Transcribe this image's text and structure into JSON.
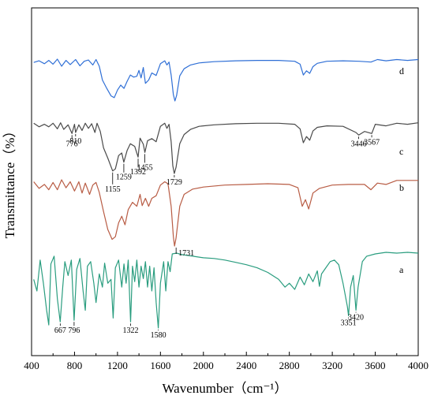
{
  "chart_data": {
    "type": "line",
    "xlabel": "Wavenumber（cm⁻¹）",
    "ylabel": "Transmittance（%）",
    "xlim": [
      400,
      4000
    ],
    "x_ticks": [
      "400",
      "800",
      "1200",
      "1600",
      "2000",
      "2400",
      "2800",
      "3200",
      "3600",
      "4000"
    ],
    "grid": false,
    "legend": "none",
    "series": [
      {
        "name": "d",
        "color": "#2f6fd6",
        "points": [
          [
            420,
            0.92
          ],
          [
            470,
            0.96
          ],
          [
            520,
            0.89
          ],
          [
            560,
            0.97
          ],
          [
            600,
            0.88
          ],
          [
            640,
            1.0
          ],
          [
            680,
            0.83
          ],
          [
            720,
            0.97
          ],
          [
            760,
            0.87
          ],
          [
            810,
            0.99
          ],
          [
            850,
            0.84
          ],
          [
            890,
            0.95
          ],
          [
            930,
            0.98
          ],
          [
            970,
            0.86
          ],
          [
            1000,
            0.99
          ],
          [
            1030,
            0.83
          ],
          [
            1060,
            0.5
          ],
          [
            1100,
            0.3
          ],
          [
            1140,
            0.12
          ],
          [
            1170,
            0.08
          ],
          [
            1200,
            0.26
          ],
          [
            1230,
            0.38
          ],
          [
            1260,
            0.3
          ],
          [
            1290,
            0.47
          ],
          [
            1320,
            0.62
          ],
          [
            1350,
            0.57
          ],
          [
            1380,
            0.59
          ],
          [
            1400,
            0.73
          ],
          [
            1420,
            0.55
          ],
          [
            1440,
            0.8
          ],
          [
            1460,
            0.42
          ],
          [
            1490,
            0.5
          ],
          [
            1520,
            0.67
          ],
          [
            1560,
            0.61
          ],
          [
            1600,
            0.89
          ],
          [
            1640,
            0.96
          ],
          [
            1660,
            0.86
          ],
          [
            1680,
            0.93
          ],
          [
            1700,
            0.62
          ],
          [
            1720,
            0.15
          ],
          [
            1735,
            0.0
          ],
          [
            1750,
            0.13
          ],
          [
            1780,
            0.6
          ],
          [
            1820,
            0.77
          ],
          [
            1880,
            0.86
          ],
          [
            1960,
            0.91
          ],
          [
            2100,
            0.94
          ],
          [
            2300,
            0.96
          ],
          [
            2500,
            0.97
          ],
          [
            2700,
            0.97
          ],
          [
            2850,
            0.95
          ],
          [
            2900,
            0.88
          ],
          [
            2930,
            0.62
          ],
          [
            2960,
            0.72
          ],
          [
            2990,
            0.66
          ],
          [
            3020,
            0.82
          ],
          [
            3060,
            0.9
          ],
          [
            3150,
            0.95
          ],
          [
            3300,
            0.96
          ],
          [
            3450,
            0.95
          ],
          [
            3560,
            0.93
          ],
          [
            3620,
            0.99
          ],
          [
            3700,
            0.96
          ],
          [
            3800,
            0.99
          ],
          [
            3900,
            0.97
          ],
          [
            4000,
            0.99
          ]
        ]
      },
      {
        "name": "c",
        "color": "#4a4a4a",
        "points": [
          [
            420,
            0.98
          ],
          [
            470,
            0.91
          ],
          [
            520,
            0.96
          ],
          [
            560,
            0.91
          ],
          [
            600,
            0.98
          ],
          [
            640,
            0.87
          ],
          [
            670,
            0.99
          ],
          [
            700,
            0.86
          ],
          [
            740,
            0.95
          ],
          [
            776,
            0.78
          ],
          [
            800,
            0.96
          ],
          [
            810,
            0.8
          ],
          [
            840,
            0.95
          ],
          [
            870,
            0.84
          ],
          [
            900,
            0.98
          ],
          [
            930,
            0.88
          ],
          [
            960,
            0.97
          ],
          [
            990,
            0.8
          ],
          [
            1010,
            0.98
          ],
          [
            1040,
            0.82
          ],
          [
            1070,
            0.5
          ],
          [
            1110,
            0.3
          ],
          [
            1155,
            0.05
          ],
          [
            1180,
            0.09
          ],
          [
            1210,
            0.35
          ],
          [
            1240,
            0.4
          ],
          [
            1259,
            0.22
          ],
          [
            1290,
            0.45
          ],
          [
            1320,
            0.58
          ],
          [
            1360,
            0.53
          ],
          [
            1392,
            0.32
          ],
          [
            1410,
            0.69
          ],
          [
            1440,
            0.57
          ],
          [
            1455,
            0.41
          ],
          [
            1480,
            0.64
          ],
          [
            1520,
            0.68
          ],
          [
            1560,
            0.62
          ],
          [
            1600,
            0.92
          ],
          [
            1640,
            0.98
          ],
          [
            1660,
            0.88
          ],
          [
            1680,
            0.96
          ],
          [
            1700,
            0.62
          ],
          [
            1715,
            0.15
          ],
          [
            1729,
            0.0
          ],
          [
            1745,
            0.12
          ],
          [
            1780,
            0.58
          ],
          [
            1820,
            0.76
          ],
          [
            1880,
            0.86
          ],
          [
            1960,
            0.92
          ],
          [
            2100,
            0.95
          ],
          [
            2300,
            0.97
          ],
          [
            2500,
            0.98
          ],
          [
            2700,
            0.98
          ],
          [
            2850,
            0.96
          ],
          [
            2900,
            0.87
          ],
          [
            2930,
            0.6
          ],
          [
            2960,
            0.72
          ],
          [
            2990,
            0.65
          ],
          [
            3020,
            0.83
          ],
          [
            3060,
            0.9
          ],
          [
            3150,
            0.93
          ],
          [
            3300,
            0.92
          ],
          [
            3420,
            0.8
          ],
          [
            3446,
            0.75
          ],
          [
            3500,
            0.82
          ],
          [
            3567,
            0.78
          ],
          [
            3600,
            0.96
          ],
          [
            3700,
            0.93
          ],
          [
            3800,
            0.98
          ],
          [
            3900,
            0.96
          ],
          [
            4000,
            0.99
          ]
        ]
      },
      {
        "name": "b",
        "color": "#b85c44",
        "points": [
          [
            420,
            0.97
          ],
          [
            470,
            0.87
          ],
          [
            520,
            0.93
          ],
          [
            560,
            0.85
          ],
          [
            600,
            0.96
          ],
          [
            640,
            0.85
          ],
          [
            680,
            1.0
          ],
          [
            720,
            0.88
          ],
          [
            760,
            0.97
          ],
          [
            800,
            0.83
          ],
          [
            840,
            0.97
          ],
          [
            870,
            0.8
          ],
          [
            900,
            0.95
          ],
          [
            940,
            0.78
          ],
          [
            970,
            0.92
          ],
          [
            1000,
            0.96
          ],
          [
            1030,
            0.81
          ],
          [
            1070,
            0.52
          ],
          [
            1110,
            0.25
          ],
          [
            1150,
            0.1
          ],
          [
            1180,
            0.14
          ],
          [
            1210,
            0.35
          ],
          [
            1240,
            0.45
          ],
          [
            1270,
            0.32
          ],
          [
            1300,
            0.55
          ],
          [
            1340,
            0.66
          ],
          [
            1380,
            0.6
          ],
          [
            1410,
            0.78
          ],
          [
            1430,
            0.61
          ],
          [
            1460,
            0.72
          ],
          [
            1490,
            0.6
          ],
          [
            1520,
            0.72
          ],
          [
            1560,
            0.76
          ],
          [
            1600,
            0.92
          ],
          [
            1640,
            0.97
          ],
          [
            1670,
            0.94
          ],
          [
            1700,
            0.6
          ],
          [
            1720,
            0.14
          ],
          [
            1731,
            0.0
          ],
          [
            1745,
            0.12
          ],
          [
            1780,
            0.6
          ],
          [
            1820,
            0.78
          ],
          [
            1900,
            0.86
          ],
          [
            2000,
            0.89
          ],
          [
            2200,
            0.92
          ],
          [
            2400,
            0.93
          ],
          [
            2600,
            0.94
          ],
          [
            2800,
            0.93
          ],
          [
            2880,
            0.88
          ],
          [
            2920,
            0.6
          ],
          [
            2950,
            0.7
          ],
          [
            2980,
            0.56
          ],
          [
            3020,
            0.8
          ],
          [
            3080,
            0.87
          ],
          [
            3200,
            0.92
          ],
          [
            3350,
            0.93
          ],
          [
            3500,
            0.93
          ],
          [
            3560,
            0.85
          ],
          [
            3620,
            0.95
          ],
          [
            3700,
            0.93
          ],
          [
            3800,
            0.99
          ],
          [
            3900,
            0.99
          ],
          [
            4000,
            0.99
          ]
        ]
      },
      {
        "name": "a",
        "color": "#2a9d7f",
        "points": [
          [
            420,
            0.65
          ],
          [
            450,
            0.5
          ],
          [
            480,
            0.9
          ],
          [
            510,
            0.6
          ],
          [
            540,
            0.25
          ],
          [
            560,
            0.06
          ],
          [
            580,
            0.85
          ],
          [
            610,
            0.95
          ],
          [
            640,
            0.4
          ],
          [
            667,
            0.1
          ],
          [
            690,
            0.55
          ],
          [
            710,
            0.88
          ],
          [
            740,
            0.7
          ],
          [
            770,
            0.9
          ],
          [
            796,
            0.12
          ],
          [
            820,
            0.78
          ],
          [
            850,
            0.92
          ],
          [
            880,
            0.5
          ],
          [
            900,
            0.25
          ],
          [
            920,
            0.82
          ],
          [
            950,
            0.88
          ],
          [
            980,
            0.6
          ],
          [
            1000,
            0.35
          ],
          [
            1030,
            0.72
          ],
          [
            1060,
            0.55
          ],
          [
            1080,
            0.86
          ],
          [
            1110,
            0.6
          ],
          [
            1140,
            0.65
          ],
          [
            1160,
            0.15
          ],
          [
            1180,
            0.8
          ],
          [
            1210,
            0.9
          ],
          [
            1240,
            0.55
          ],
          [
            1260,
            0.85
          ],
          [
            1280,
            0.6
          ],
          [
            1300,
            0.9
          ],
          [
            1322,
            0.1
          ],
          [
            1340,
            0.82
          ],
          [
            1360,
            0.62
          ],
          [
            1380,
            0.9
          ],
          [
            1400,
            0.55
          ],
          [
            1420,
            0.82
          ],
          [
            1440,
            0.66
          ],
          [
            1460,
            0.88
          ],
          [
            1480,
            0.55
          ],
          [
            1500,
            0.82
          ],
          [
            1520,
            0.5
          ],
          [
            1540,
            0.8
          ],
          [
            1560,
            0.35
          ],
          [
            1580,
            0.02
          ],
          [
            1600,
            0.6
          ],
          [
            1630,
            0.88
          ],
          [
            1650,
            0.5
          ],
          [
            1670,
            0.88
          ],
          [
            1690,
            0.75
          ],
          [
            1710,
            0.98
          ],
          [
            1750,
            0.99
          ],
          [
            1800,
            0.97
          ],
          [
            1850,
            0.96
          ],
          [
            1900,
            0.95
          ],
          [
            2000,
            0.93
          ],
          [
            2100,
            0.92
          ],
          [
            2200,
            0.9
          ],
          [
            2300,
            0.87
          ],
          [
            2400,
            0.84
          ],
          [
            2500,
            0.8
          ],
          [
            2600,
            0.74
          ],
          [
            2700,
            0.65
          ],
          [
            2760,
            0.55
          ],
          [
            2800,
            0.6
          ],
          [
            2850,
            0.52
          ],
          [
            2900,
            0.68
          ],
          [
            2940,
            0.58
          ],
          [
            2980,
            0.72
          ],
          [
            3020,
            0.62
          ],
          [
            3060,
            0.76
          ],
          [
            3080,
            0.56
          ],
          [
            3100,
            0.72
          ],
          [
            3140,
            0.8
          ],
          [
            3180,
            0.88
          ],
          [
            3220,
            0.9
          ],
          [
            3260,
            0.84
          ],
          [
            3300,
            0.6
          ],
          [
            3340,
            0.3
          ],
          [
            3351,
            0.18
          ],
          [
            3370,
            0.55
          ],
          [
            3395,
            0.7
          ],
          [
            3420,
            0.25
          ],
          [
            3440,
            0.55
          ],
          [
            3480,
            0.88
          ],
          [
            3520,
            0.95
          ],
          [
            3600,
            0.98
          ],
          [
            3700,
            1.0
          ],
          [
            3800,
            0.99
          ],
          [
            3900,
            1.0
          ],
          [
            4000,
            0.99
          ]
        ]
      }
    ],
    "annotations": [
      {
        "series": "c",
        "x": 776,
        "text": "776"
      },
      {
        "series": "c",
        "x": 810,
        "text": "810"
      },
      {
        "series": "c",
        "x": 1155,
        "text": "1155"
      },
      {
        "series": "c",
        "x": 1259,
        "text": "1259"
      },
      {
        "series": "c",
        "x": 1392,
        "text": "1392"
      },
      {
        "series": "c",
        "x": 1455,
        "text": "1455"
      },
      {
        "series": "c",
        "x": 1729,
        "text": "1729"
      },
      {
        "series": "c",
        "x": 3446,
        "text": "3446"
      },
      {
        "series": "c",
        "x": 3567,
        "text": "3567"
      },
      {
        "series": "b",
        "x": 1731,
        "text": "1731"
      },
      {
        "series": "a",
        "x": 667,
        "text": "667"
      },
      {
        "series": "a",
        "x": 796,
        "text": "796"
      },
      {
        "series": "a",
        "x": 1322,
        "text": "1322"
      },
      {
        "series": "a",
        "x": 1580,
        "text": "1580"
      },
      {
        "series": "a",
        "x": 3351,
        "text": "3351"
      },
      {
        "series": "a",
        "x": 3420,
        "text": "3420"
      }
    ]
  }
}
